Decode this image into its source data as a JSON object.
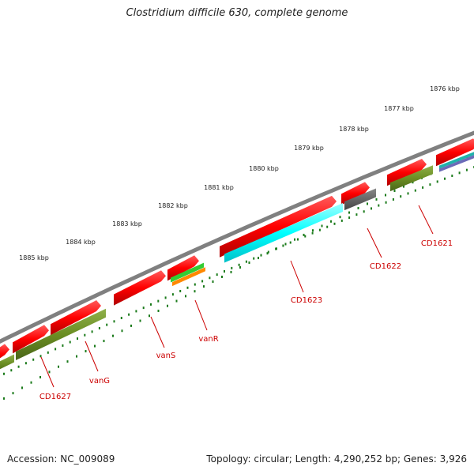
{
  "title": "Clostridium difficile 630, complete genome",
  "footer": {
    "accession": "Accession: NC_009089",
    "summary": "Topology: circular; Length: 4,290,252 bp; Genes: 3,926"
  },
  "scale_labels": [
    "1876 kbp",
    "1877 kbp",
    "1878 kbp",
    "1879 kbp",
    "1880 kbp",
    "1881 kbp",
    "1882 kbp",
    "1883 kbp",
    "1884 kbp",
    "1885 kbp"
  ],
  "gene_labels": [
    "CD1621",
    "CD1622",
    "CD1623",
    "vanR",
    "vanS",
    "vanG",
    "CD1627"
  ],
  "colors": {
    "cds_forward": "#ff0000",
    "backbone": "#808080",
    "tick": "#1a7a1a",
    "label": "#cc0000",
    "olive": "#6b8e23",
    "cyan": "#00ffff",
    "dark_gray": "#555555",
    "green": "#33cc33",
    "orange": "#ff8800"
  }
}
